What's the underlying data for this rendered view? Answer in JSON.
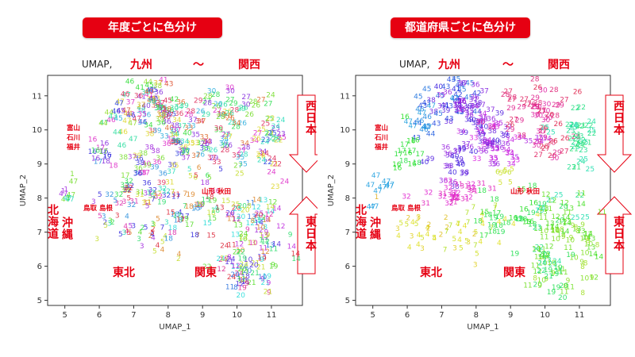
{
  "panels": [
    {
      "id": "left",
      "banner": "年度ごとに色分け",
      "title": "UMAP, ",
      "header_left": "九州",
      "header_mid": "〜",
      "header_right": "関西",
      "west_label": "西日本",
      "east_label": "東日本",
      "hokuriku": [
        "富山",
        "石川",
        "福井"
      ],
      "hokkaido": "北海道",
      "okinawa": "沖縄",
      "tottori_shimane": "鳥取 島根",
      "yamagata_akita": "山形 秋田",
      "tohoku": "東北",
      "kanto": "関東",
      "color_mode": "year"
    },
    {
      "id": "right",
      "banner": "都道府県ごとに色分け",
      "title": "UMAP,",
      "header_left": "九州",
      "header_mid": "〜",
      "header_right": "関西",
      "west_label": "西日本",
      "east_label": "東日本",
      "hokuriku": [
        "富山",
        "石川",
        "福井"
      ],
      "hokkaido": "北海道",
      "okinawa": "沖縄",
      "tottori_shimane": "鳥取 島根",
      "yamagata_akita": "山形 秋田",
      "tohoku": "東北",
      "kanto": "関東",
      "color_mode": "prefecture"
    }
  ],
  "colors": {
    "accent": "#e60012"
  },
  "chart_data": {
    "type": "scatter",
    "xlabel": "UMAP_1",
    "ylabel": "UMAP_2",
    "xlim": [
      4.5,
      11.9
    ],
    "ylim": [
      4.85,
      11.6
    ],
    "xticks": [
      5,
      6,
      7,
      8,
      9,
      10,
      11
    ],
    "yticks": [
      5,
      6,
      7,
      8,
      9,
      10,
      11
    ],
    "point_labels_note": "Each marker is a prefecture code (1-47) drawn as text.",
    "clusters": [
      {
        "cx": 7.35,
        "cy": 10.85,
        "sx": 0.35,
        "sy": 0.35,
        "codes": [
          40,
          41,
          42,
          43,
          44,
          45,
          46,
          47,
          38,
          37,
          36
        ],
        "n": 36
      },
      {
        "cx": 7.9,
        "cy": 10.45,
        "sx": 0.35,
        "sy": 0.3,
        "codes": [
          34,
          35,
          36,
          37,
          38,
          39
        ],
        "n": 28
      },
      {
        "cx": 6.5,
        "cy": 10.2,
        "sx": 0.25,
        "sy": 0.4,
        "codes": [
          43,
          44,
          45,
          46,
          47
        ],
        "n": 18
      },
      {
        "cx": 8.4,
        "cy": 9.8,
        "sx": 0.45,
        "sy": 0.3,
        "codes": [
          33,
          34,
          35,
          36,
          37,
          38,
          39,
          40
        ],
        "n": 34
      },
      {
        "cx": 9.7,
        "cy": 10.6,
        "sx": 0.55,
        "sy": 0.3,
        "codes": [
          26,
          27,
          28,
          29,
          30
        ],
        "n": 36
      },
      {
        "cx": 9.9,
        "cy": 9.6,
        "sx": 0.45,
        "sy": 0.35,
        "codes": [
          25,
          26,
          27,
          28,
          29,
          30,
          34,
          35
        ],
        "n": 30
      },
      {
        "cx": 11.05,
        "cy": 9.55,
        "sx": 0.2,
        "sy": 0.55,
        "codes": [
          21,
          22,
          23,
          24,
          25
        ],
        "n": 30
      },
      {
        "cx": 6.05,
        "cy": 9.2,
        "sx": 0.25,
        "sy": 0.3,
        "codes": [
          16,
          17,
          18
        ],
        "n": 14
      },
      {
        "cx": 7.3,
        "cy": 8.9,
        "sx": 0.35,
        "sy": 0.3,
        "codes": [
          36,
          37,
          38,
          39,
          40
        ],
        "n": 22
      },
      {
        "cx": 8.6,
        "cy": 9.2,
        "sx": 0.4,
        "sy": 0.25,
        "codes": [
          33,
          34,
          35,
          36,
          37
        ],
        "n": 16
      },
      {
        "cx": 7.3,
        "cy": 8.15,
        "sx": 0.5,
        "sy": 0.2,
        "codes": [
          31,
          32
        ],
        "n": 26
      },
      {
        "cx": 5.15,
        "cy": 8.2,
        "sx": 0.15,
        "sy": 0.3,
        "codes": [
          1,
          47
        ],
        "n": 10
      },
      {
        "cx": 8.9,
        "cy": 8.65,
        "sx": 0.25,
        "sy": 0.2,
        "codes": [
          5,
          6
        ],
        "n": 8
      },
      {
        "cx": 6.5,
        "cy": 7.1,
        "sx": 0.35,
        "sy": 0.35,
        "codes": [
          2,
          3,
          4,
          5
        ],
        "n": 24
      },
      {
        "cx": 7.5,
        "cy": 7.0,
        "sx": 0.35,
        "sy": 0.35,
        "codes": [
          2,
          3,
          4,
          5,
          7
        ],
        "n": 22
      },
      {
        "cx": 8.4,
        "cy": 7.25,
        "sx": 0.35,
        "sy": 0.4,
        "codes": [
          4,
          7,
          15,
          17,
          18,
          19
        ],
        "n": 24
      },
      {
        "cx": 9.3,
        "cy": 7.6,
        "sx": 0.35,
        "sy": 0.3,
        "codes": [
          4,
          15,
          16,
          18,
          19
        ],
        "n": 16
      },
      {
        "cx": 10.3,
        "cy": 7.5,
        "sx": 0.35,
        "sy": 0.35,
        "codes": [
          11,
          12,
          13,
          14,
          20,
          25
        ],
        "n": 26
      },
      {
        "cx": 11.0,
        "cy": 6.8,
        "sx": 0.35,
        "sy": 0.45,
        "codes": [
          8,
          9,
          10,
          11,
          12,
          13,
          14
        ],
        "n": 34
      },
      {
        "cx": 10.0,
        "cy": 6.3,
        "sx": 0.25,
        "sy": 0.4,
        "codes": [
          10,
          11,
          12,
          22,
          23,
          24
        ],
        "n": 24
      },
      {
        "cx": 10.4,
        "cy": 5.6,
        "sx": 0.35,
        "sy": 0.35,
        "codes": [
          8,
          9,
          10,
          11,
          19,
          20,
          21
        ],
        "n": 32
      }
    ]
  }
}
